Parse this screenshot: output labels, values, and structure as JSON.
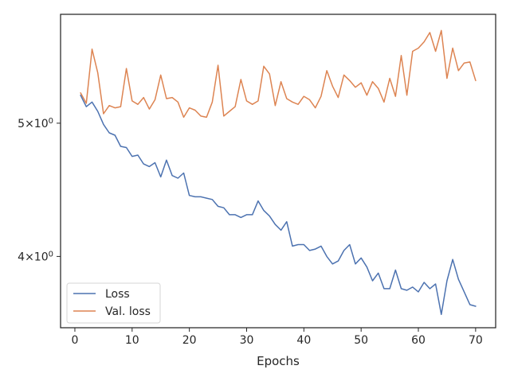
{
  "chart_data": {
    "type": "line",
    "title": "",
    "xlabel": "Epochs",
    "ylabel": "",
    "xlim": [
      -2.5,
      73.5
    ],
    "ylim": [
      3.55,
      6.0
    ],
    "yscale": "log",
    "grid": false,
    "legend_position": "lower-left",
    "x_ticks": [
      {
        "value": 0,
        "label": "0"
      },
      {
        "value": 10,
        "label": "10"
      },
      {
        "value": 20,
        "label": "20"
      },
      {
        "value": 30,
        "label": "30"
      },
      {
        "value": 40,
        "label": "40"
      },
      {
        "value": 50,
        "label": "50"
      },
      {
        "value": 60,
        "label": "60"
      },
      {
        "value": 70,
        "label": "70"
      }
    ],
    "y_ticks": [
      {
        "value": 5,
        "mantissa": "5",
        "exponent": "0"
      },
      {
        "value": 4,
        "mantissa": "4",
        "exponent": "0"
      }
    ],
    "x": [
      1,
      2,
      3,
      4,
      5,
      6,
      7,
      8,
      9,
      10,
      11,
      12,
      13,
      14,
      15,
      16,
      17,
      18,
      19,
      20,
      21,
      22,
      23,
      24,
      25,
      26,
      27,
      28,
      29,
      30,
      31,
      32,
      33,
      34,
      35,
      36,
      37,
      38,
      39,
      40,
      41,
      42,
      43,
      44,
      45,
      46,
      47,
      48,
      49,
      50,
      51,
      52,
      53,
      54,
      55,
      56,
      57,
      58,
      59,
      60,
      61,
      62,
      63,
      64,
      65,
      66,
      67,
      68,
      69,
      70
    ],
    "series": [
      {
        "name": "Loss",
        "color": "#4c72b0",
        "values": [
          5.24,
          5.14,
          5.18,
          5.1,
          4.99,
          4.92,
          4.9,
          4.81,
          4.8,
          4.73,
          4.74,
          4.67,
          4.65,
          4.68,
          4.57,
          4.7,
          4.58,
          4.56,
          4.6,
          4.43,
          4.42,
          4.42,
          4.41,
          4.4,
          4.35,
          4.34,
          4.29,
          4.29,
          4.27,
          4.29,
          4.29,
          4.39,
          4.32,
          4.28,
          4.22,
          4.18,
          4.24,
          4.07,
          4.08,
          4.08,
          4.04,
          4.05,
          4.07,
          4.0,
          3.95,
          3.97,
          4.04,
          4.08,
          3.95,
          3.99,
          3.93,
          3.84,
          3.89,
          3.79,
          3.79,
          3.91,
          3.79,
          3.78,
          3.8,
          3.77,
          3.83,
          3.79,
          3.82,
          3.63,
          3.84,
          3.98,
          3.85,
          3.77,
          3.69,
          3.68
        ]
      },
      {
        "name": "Val. loss",
        "color": "#dd8452",
        "values": [
          5.26,
          5.17,
          5.66,
          5.44,
          5.08,
          5.15,
          5.13,
          5.14,
          5.48,
          5.19,
          5.16,
          5.22,
          5.12,
          5.2,
          5.42,
          5.21,
          5.22,
          5.18,
          5.05,
          5.13,
          5.11,
          5.06,
          5.05,
          5.18,
          5.51,
          5.06,
          5.1,
          5.14,
          5.38,
          5.19,
          5.16,
          5.19,
          5.5,
          5.43,
          5.15,
          5.36,
          5.21,
          5.18,
          5.16,
          5.23,
          5.2,
          5.13,
          5.23,
          5.46,
          5.32,
          5.22,
          5.42,
          5.37,
          5.31,
          5.35,
          5.24,
          5.36,
          5.3,
          5.18,
          5.39,
          5.23,
          5.6,
          5.24,
          5.64,
          5.67,
          5.73,
          5.82,
          5.64,
          5.84,
          5.39,
          5.67,
          5.46,
          5.53,
          5.54,
          5.37
        ]
      }
    ]
  }
}
